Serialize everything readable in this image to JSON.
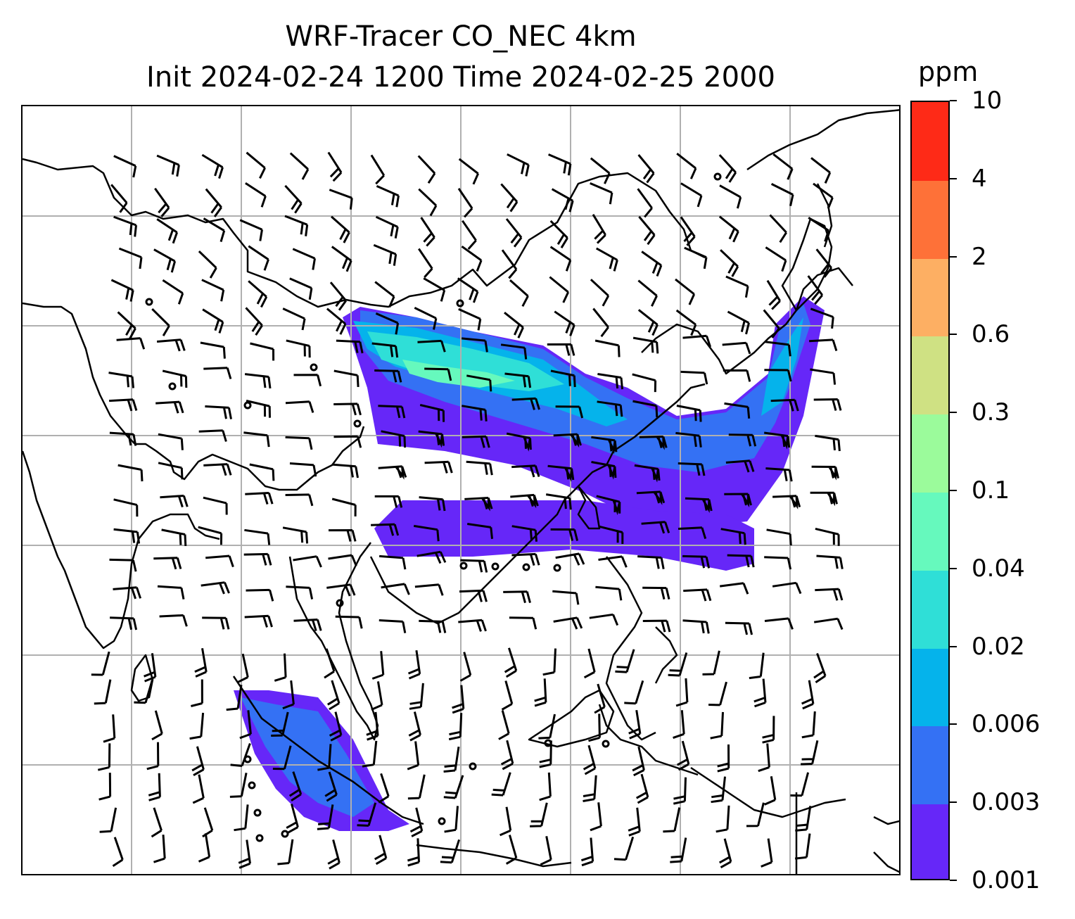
{
  "title": {
    "line1": "WRF-Tracer CO_NEC 4km",
    "line2": "Init 2024-02-24 1200 Time 2024-02-25 2000"
  },
  "colorbar": {
    "unit": "ppm",
    "levels": [
      "0.001",
      "0.003",
      "0.006",
      "0.02",
      "0.04",
      "0.1",
      "0.3",
      "0.6",
      "2",
      "4",
      "10"
    ],
    "colors": [
      "#6627f8",
      "#3471f4",
      "#05b3eb",
      "#2fdfd7",
      "#66f9bd",
      "#9bfb9b",
      "#cfe183",
      "#fdaf63",
      "#fe7138",
      "#fe2a17"
    ]
  },
  "map": {
    "gridlines": true,
    "background": "#ffffff",
    "coastline_color": "#000000",
    "barb_color": "#000000",
    "gridline_color": "#b0b0b0"
  }
}
